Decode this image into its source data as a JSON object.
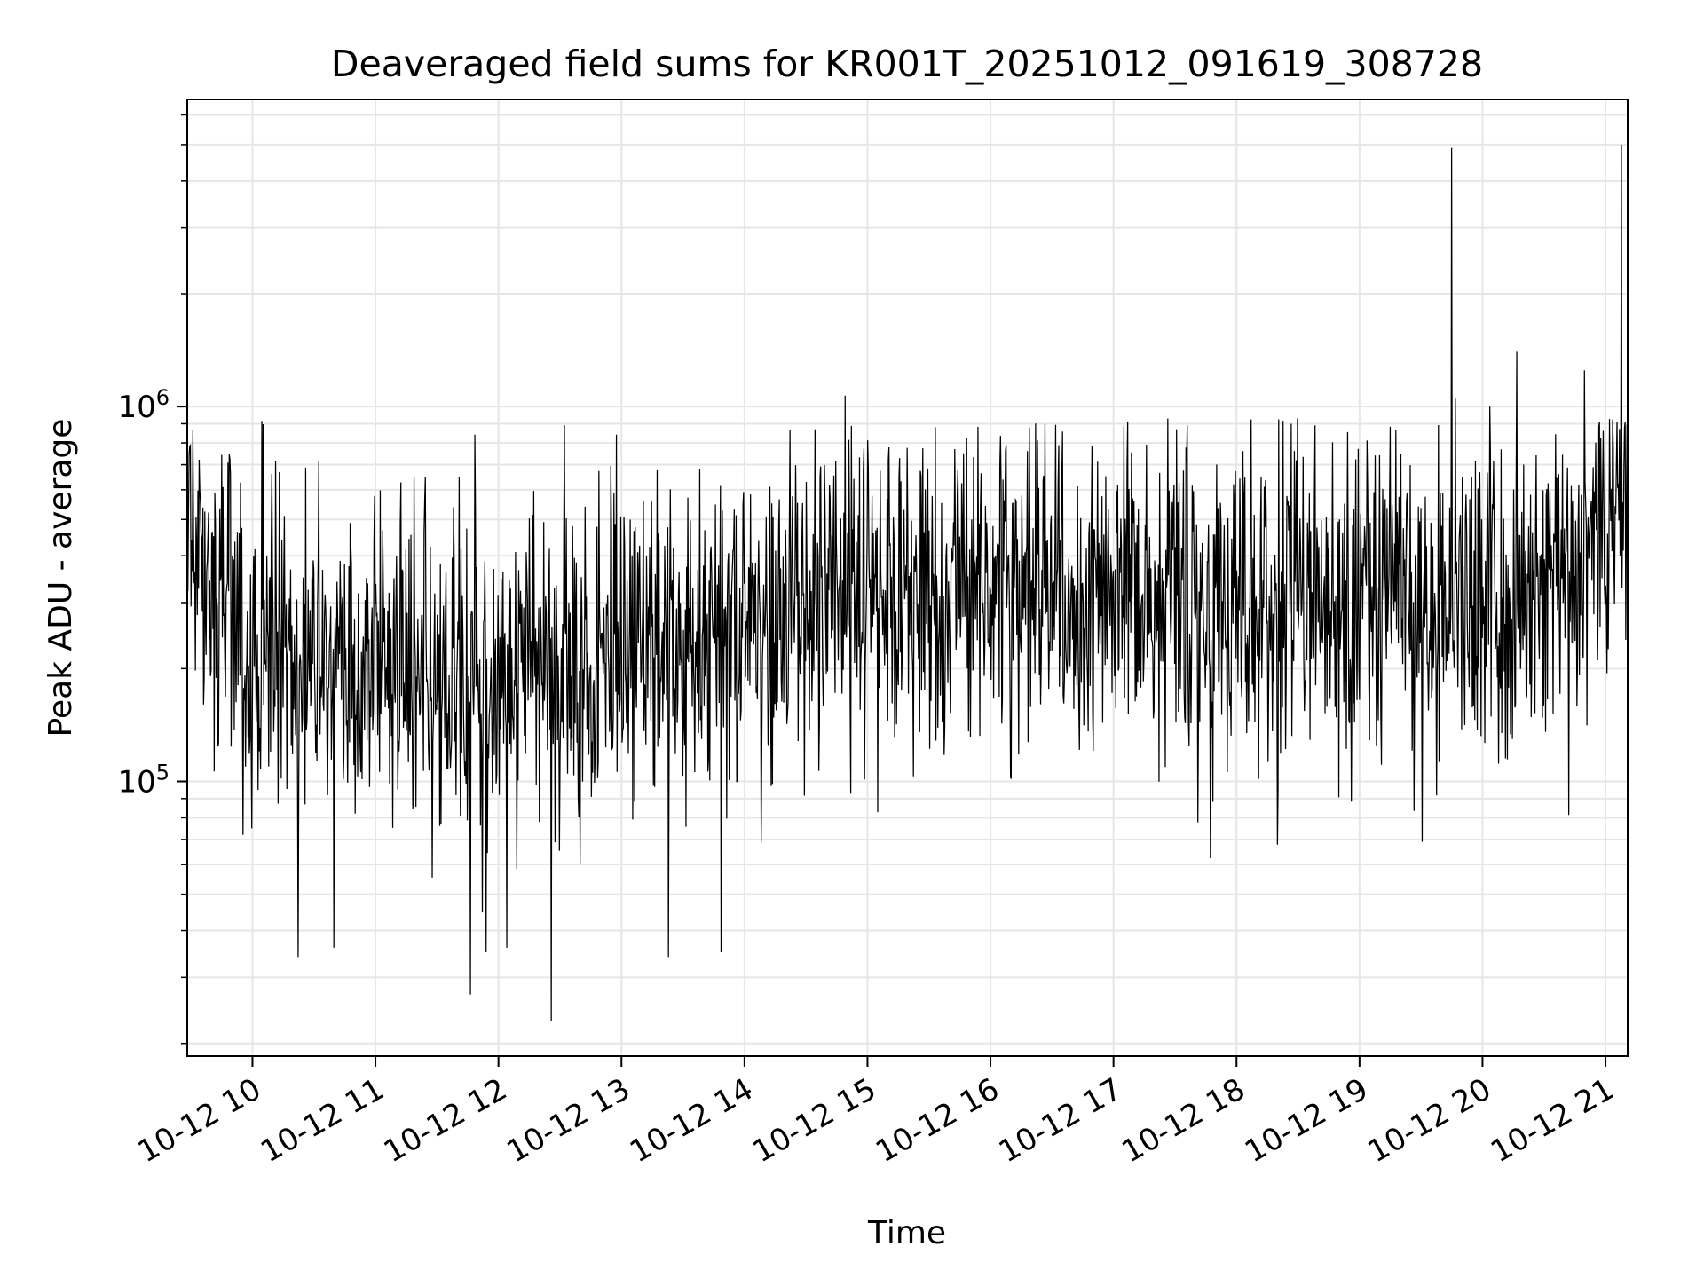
{
  "chart_data": {
    "type": "line",
    "title": "Deaveraged field sums for KR001T_20251012_091619_308728",
    "xlabel": "Time",
    "ylabel": "Peak ADU - average",
    "yscale": "log",
    "ylim": [
      18500,
      6600000
    ],
    "xlim_hours": [
      9.47,
      21.18
    ],
    "grid": true,
    "x_ticks": [
      {
        "hour": 10,
        "label": "10-12 10"
      },
      {
        "hour": 11,
        "label": "10-12 11"
      },
      {
        "hour": 12,
        "label": "10-12 12"
      },
      {
        "hour": 13,
        "label": "10-12 13"
      },
      {
        "hour": 14,
        "label": "10-12 14"
      },
      {
        "hour": 15,
        "label": "10-12 15"
      },
      {
        "hour": 16,
        "label": "10-12 16"
      },
      {
        "hour": 17,
        "label": "10-12 17"
      },
      {
        "hour": 18,
        "label": "10-12 18"
      },
      {
        "hour": 19,
        "label": "10-12 19"
      },
      {
        "hour": 20,
        "label": "10-12 20"
      },
      {
        "hour": 21,
        "label": "10-12 21"
      }
    ],
    "y_ticks": [
      {
        "value": 100000,
        "base": "10",
        "exp": "5"
      },
      {
        "value": 1000000,
        "base": "10",
        "exp": "6"
      }
    ],
    "series": [
      {
        "name": "Peak ADU - average",
        "color": "#000000",
        "trend": [
          {
            "hour": 9.47,
            "value": 450000
          },
          {
            "hour": 9.65,
            "value": 400000
          },
          {
            "hour": 9.9,
            "value": 230000
          },
          {
            "hour": 10.5,
            "value": 190000
          },
          {
            "hour": 11.0,
            "value": 210000
          },
          {
            "hour": 11.5,
            "value": 200000
          },
          {
            "hour": 12.0,
            "value": 200000
          },
          {
            "hour": 12.5,
            "value": 210000
          },
          {
            "hour": 13.0,
            "value": 220000
          },
          {
            "hour": 13.5,
            "value": 240000
          },
          {
            "hour": 14.0,
            "value": 260000
          },
          {
            "hour": 14.5,
            "value": 290000
          },
          {
            "hour": 15.0,
            "value": 330000
          },
          {
            "hour": 15.5,
            "value": 340000
          },
          {
            "hour": 16.0,
            "value": 330000
          },
          {
            "hour": 16.5,
            "value": 310000
          },
          {
            "hour": 17.0,
            "value": 310000
          },
          {
            "hour": 17.5,
            "value": 320000
          },
          {
            "hour": 18.0,
            "value": 300000
          },
          {
            "hour": 18.5,
            "value": 290000
          },
          {
            "hour": 19.0,
            "value": 300000
          },
          {
            "hour": 19.5,
            "value": 310000
          },
          {
            "hour": 20.0,
            "value": 300000
          },
          {
            "hour": 20.4,
            "value": 300000
          },
          {
            "hour": 20.7,
            "value": 340000
          },
          {
            "hour": 20.85,
            "value": 480000
          },
          {
            "hour": 21.18,
            "value": 560000
          }
        ],
        "spread_dex": 0.22,
        "spikes": [
          {
            "hour": 19.75,
            "value": 4900000
          },
          {
            "hour": 21.13,
            "value": 5000000
          },
          {
            "hour": 20.28,
            "value": 1400000
          },
          {
            "hour": 20.83,
            "value": 1250000
          },
          {
            "hour": 14.82,
            "value": 1070000
          },
          {
            "hour": 19.78,
            "value": 1050000
          },
          {
            "hour": 20.06,
            "value": 1000000
          },
          {
            "hour": 12.43,
            "value": 23000
          },
          {
            "hour": 11.77,
            "value": 27000
          },
          {
            "hour": 10.37,
            "value": 34000
          },
          {
            "hour": 12.07,
            "value": 36000
          },
          {
            "hour": 13.38,
            "value": 34000
          },
          {
            "hour": 13.81,
            "value": 35000
          },
          {
            "hour": 11.9,
            "value": 35000
          },
          {
            "hour": 10.66,
            "value": 36000
          }
        ]
      }
    ]
  }
}
